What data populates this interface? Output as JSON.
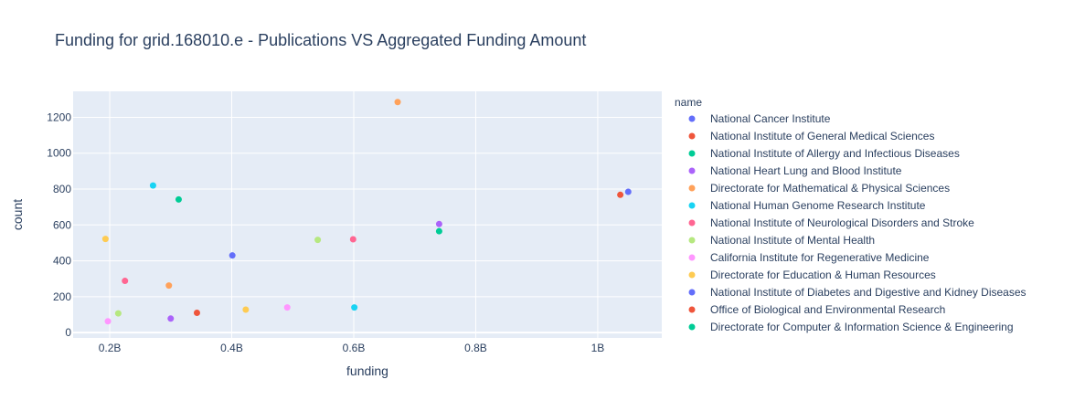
{
  "chart_data": {
    "type": "scatter",
    "title": "Funding for grid.168010.e - Publications VS Aggregated Funding Amount",
    "xlabel": "funding",
    "ylabel": "count",
    "xlim": [
      140000000,
      1105000000
    ],
    "ylim": [
      -30,
      1345
    ],
    "x_ticks": [
      {
        "value": 200000000,
        "label": "0.2B"
      },
      {
        "value": 400000000,
        "label": "0.4B"
      },
      {
        "value": 600000000,
        "label": "0.6B"
      },
      {
        "value": 800000000,
        "label": "0.8B"
      },
      {
        "value": 1000000000,
        "label": "1B"
      }
    ],
    "y_ticks": [
      {
        "value": 0,
        "label": "0"
      },
      {
        "value": 200,
        "label": "200"
      },
      {
        "value": 400,
        "label": "400"
      },
      {
        "value": 600,
        "label": "600"
      },
      {
        "value": 800,
        "label": "800"
      },
      {
        "value": 1000,
        "label": "1000"
      },
      {
        "value": 1200,
        "label": "1200"
      }
    ],
    "grid": true,
    "legend_title": "name",
    "legend_position": "right",
    "series": [
      {
        "name": "National Cancer Institute",
        "color": "#636efa",
        "points": [
          [
            1050000000,
            785
          ]
        ]
      },
      {
        "name": "National Institute of General Medical Sciences",
        "color": "#EF553B",
        "points": [
          [
            1037000000,
            768
          ]
        ]
      },
      {
        "name": "National Institute of Allergy and Infectious Diseases",
        "color": "#00cc96",
        "points": [
          [
            740000000,
            565
          ]
        ]
      },
      {
        "name": "National Heart Lung and Blood Institute",
        "color": "#ab63fa",
        "points": [
          [
            740000000,
            605
          ],
          [
            300000000,
            78
          ]
        ]
      },
      {
        "name": "Directorate for Mathematical & Physical Sciences",
        "color": "#FFA15A",
        "points": [
          [
            672000000,
            1285
          ],
          [
            297000000,
            262
          ]
        ]
      },
      {
        "name": "National Human Genome Research Institute",
        "color": "#19d3f3",
        "points": [
          [
            271000000,
            820
          ],
          [
            601000000,
            140
          ]
        ]
      },
      {
        "name": "National Institute of Neurological Disorders and Stroke",
        "color": "#FF6692",
        "points": [
          [
            599000000,
            520
          ],
          [
            225000000,
            288
          ]
        ]
      },
      {
        "name": "National Institute of Mental Health",
        "color": "#B6E880",
        "points": [
          [
            541000000,
            517
          ],
          [
            214000000,
            107
          ]
        ]
      },
      {
        "name": "California Institute for Regenerative Medicine",
        "color": "#FF97FF",
        "points": [
          [
            491000000,
            140
          ],
          [
            197000000,
            63
          ]
        ]
      },
      {
        "name": "Directorate for Education & Human Resources",
        "color": "#FECB52",
        "points": [
          [
            193000000,
            522
          ],
          [
            423000000,
            128
          ]
        ]
      },
      {
        "name": "National Institute of Diabetes and Digestive and Kidney Diseases",
        "color": "#636efa",
        "points": [
          [
            401000000,
            430
          ]
        ]
      },
      {
        "name": "Office of Biological and Environmental Research",
        "color": "#EF553B",
        "points": [
          [
            343000000,
            110
          ]
        ]
      },
      {
        "name": "Directorate for Computer & Information Science & Engineering",
        "color": "#00cc96",
        "points": [
          [
            313000000,
            742
          ]
        ]
      }
    ]
  }
}
